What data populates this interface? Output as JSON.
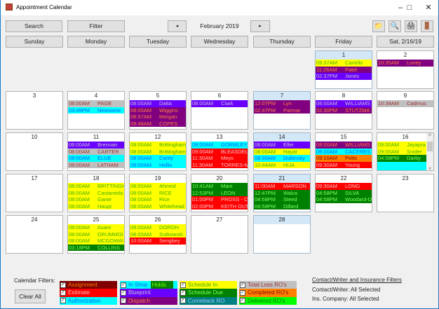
{
  "window": {
    "title": "Appointment Calendar",
    "minimize": "–",
    "maximize": "□",
    "close": "✕"
  },
  "toolbar": {
    "search": "Search",
    "filter": "Filter",
    "prev": "◂",
    "month": "February 2019",
    "next": "▸",
    "icons": [
      {
        "name": "folder-icon",
        "glyph": "📁"
      },
      {
        "name": "magnifier-icon",
        "glyph": "🔍"
      },
      {
        "name": "printer-icon",
        "glyph": "🖨"
      },
      {
        "name": "exit-door-icon",
        "glyph": "🚪"
      }
    ]
  },
  "days": [
    "Sunday",
    "Monday",
    "Tuesday",
    "Wednesday",
    "Thursday",
    "Friday",
    "Sat, 2/16/19"
  ],
  "styles": {
    "assignment": {
      "bg": "#800000",
      "fg": "#ff8000"
    },
    "estimate": {
      "bg": "#ff0000",
      "fg": "#ffc0c0"
    },
    "authorization": {
      "bg": "#00ffff",
      "fg": "#0060ff"
    },
    "in_shop": {
      "bg": "#00ffff",
      "fg": "#0060ff"
    },
    "holds": {
      "bg": "#008000",
      "fg": "#80ff00"
    },
    "blueprint": {
      "bg": "#6a00ff",
      "fg": "#c8c8c8"
    },
    "dispatch": {
      "bg": "#800080",
      "fg": "#ff8040"
    },
    "schedule_in": {
      "bg": "#ffff00",
      "fg": "#40b000"
    },
    "schedule_due": {
      "bg": "#008000",
      "fg": "#80ff60"
    },
    "comeback": {
      "bg": "#008080",
      "fg": "#a0c8ff"
    },
    "total_loss": {
      "bg": "#c0c0c0",
      "fg": "#a03030"
    },
    "completed": {
      "bg": "#ff8000",
      "fg": "#800000"
    },
    "delivered": {
      "bg": "#00ff00",
      "fg": "#007000"
    }
  },
  "weeks": [
    [
      null,
      null,
      null,
      null,
      null,
      {
        "day": "1",
        "highlight": true,
        "appts": [
          {
            "time": "09:37AM",
            "name": "Cariello",
            "type": "schedule_in"
          },
          {
            "time": "11:26AM",
            "name": "Patel",
            "type": "dispatch"
          },
          {
            "time": "02:37PM",
            "name": "Jones",
            "type": "blueprint"
          }
        ]
      },
      {
        "day": "2",
        "appts": [
          {
            "time": "10:35AM",
            "name": "Loney",
            "type": "dispatch"
          }
        ]
      }
    ],
    [
      {
        "day": "3",
        "appts": []
      },
      {
        "day": "4",
        "appts": [
          {
            "time": "08:00AM",
            "name": "PAGE",
            "type": "total_loss"
          },
          {
            "time": "03:49PM",
            "name": "Newsome",
            "type": "authorization"
          }
        ]
      },
      {
        "day": "5",
        "appts": [
          {
            "time": "08:00AM",
            "name": "Datta",
            "type": "blueprint"
          },
          {
            "time": "08:00AM",
            "name": "Wiggins",
            "type": "dispatch"
          },
          {
            "time": "08:37AM",
            "name": "Morgan",
            "type": "dispatch"
          },
          {
            "time": "09:48AM",
            "name": "COPES",
            "type": "dispatch"
          }
        ]
      },
      {
        "day": "6",
        "appts": [
          {
            "time": "08:00AM",
            "name": "Clark",
            "type": "blueprint"
          }
        ]
      },
      {
        "day": "7",
        "highlight": true,
        "appts": [
          {
            "time": "12:07PM",
            "name": "Lyn",
            "type": "dispatch"
          },
          {
            "time": "02:47PM",
            "name": "Parmar",
            "type": "dispatch"
          }
        ]
      },
      {
        "day": "8",
        "appts": [
          {
            "time": "08:00AM",
            "name": "WILLIAMS",
            "type": "blueprint"
          },
          {
            "time": "02:30PM",
            "name": "STUTZMA",
            "type": "dispatch"
          }
        ]
      },
      {
        "day": "9",
        "appts": [
          {
            "time": "10:38AM",
            "name": "Cadmus",
            "type": "total_loss"
          }
        ]
      }
    ],
    [
      {
        "day": "10",
        "appts": []
      },
      {
        "day": "11",
        "appts": [
          {
            "time": "08:00AM",
            "name": "Brennan",
            "type": "blueprint"
          },
          {
            "time": "08:00AM",
            "name": "CARTER",
            "type": "total_loss"
          },
          {
            "time": "08:00AM",
            "name": "ELUE",
            "type": "authorization"
          },
          {
            "time": "08:00AM",
            "name": "LATHAM",
            "type": "total_loss"
          }
        ]
      },
      {
        "day": "12",
        "appts": [
          {
            "time": "08:00AM",
            "name": "Brittingham",
            "type": "schedule_in"
          },
          {
            "time": "08:00AM",
            "name": "Brittingham",
            "type": "schedule_in"
          },
          {
            "time": "08:00AM",
            "name": "Carey",
            "type": "authorization"
          },
          {
            "time": "08:00AM",
            "name": "Hollis",
            "type": "authorization"
          }
        ]
      },
      {
        "day": "13",
        "appts": [
          {
            "time": "08:00AM",
            "name": "GORMLEY",
            "type": "authorization"
          },
          {
            "time": "09:00AM",
            "name": "BLEASDEL",
            "type": "estimate"
          },
          {
            "time": "11:30AM",
            "name": "Meys",
            "type": "estimate"
          },
          {
            "time": "11:30AM",
            "name": "TORRES-M",
            "type": "estimate"
          }
        ]
      },
      {
        "day": "14",
        "highlight": true,
        "appts": [
          {
            "time": "08:00AM",
            "name": "Eller",
            "type": "blueprint"
          },
          {
            "time": "08:00AM",
            "name": "Hayat",
            "type": "schedule_in"
          },
          {
            "time": "08:39AM",
            "name": "Dubinsky",
            "type": "authorization"
          },
          {
            "time": "10:44AM",
            "name": "HIJA",
            "type": "schedule_in"
          }
        ]
      },
      {
        "day": "15",
        "appts": [
          {
            "time": "08:00AM",
            "name": "WILLIAMS",
            "type": "dispatch"
          },
          {
            "time": "09:00AM",
            "name": "CACERES",
            "type": "authorization"
          },
          {
            "time": "09:10AM",
            "name": "Potts",
            "type": "completed"
          },
          {
            "time": "09:30AM",
            "name": "Young",
            "type": "estimate"
          }
        ]
      },
      {
        "day": "16",
        "scroll": true,
        "appts": [
          {
            "time": "09:00AM",
            "name": "Jayapra",
            "type": "schedule_in"
          },
          {
            "time": "09:00AM",
            "name": "Snider",
            "type": "schedule_in"
          },
          {
            "time": "04:58PM",
            "name": "Darby",
            "type": "schedule_due"
          },
          {
            "time": "",
            "name": "",
            "type": "authorization"
          }
        ]
      }
    ],
    [
      {
        "day": "17",
        "appts": []
      },
      {
        "day": "18",
        "appts": [
          {
            "time": "08:00AM",
            "name": "BRITTINGH",
            "type": "schedule_in"
          },
          {
            "time": "08:00AM",
            "name": "Castaneda",
            "type": "schedule_in"
          },
          {
            "time": "08:00AM",
            "name": "Ganie",
            "type": "schedule_in"
          },
          {
            "time": "08:00AM",
            "name": "Haupt",
            "type": "schedule_in"
          }
        ]
      },
      {
        "day": "19",
        "appts": [
          {
            "time": "08:00AM",
            "name": "Ahmed",
            "type": "schedule_in"
          },
          {
            "time": "08:00AM",
            "name": "RICE",
            "type": "schedule_in"
          },
          {
            "time": "08:00AM",
            "name": "Rice",
            "type": "schedule_in"
          },
          {
            "time": "08:00AM",
            "name": "Whitehead",
            "type": "schedule_in"
          }
        ]
      },
      {
        "day": "20",
        "appts": [
          {
            "time": "10:41AM",
            "name": "Mani",
            "type": "schedule_due"
          },
          {
            "time": "12:53PM",
            "name": "LEON",
            "type": "schedule_due"
          },
          {
            "time": "01:00PM",
            "name": "PROSS - C",
            "type": "estimate"
          },
          {
            "time": "02:00PM",
            "name": "KEITH OUT",
            "type": "estimate"
          }
        ]
      },
      {
        "day": "21",
        "highlight": true,
        "appts": [
          {
            "time": "11:00AM",
            "name": "MARSON",
            "type": "estimate"
          },
          {
            "time": "12:47PM",
            "name": "Walus",
            "type": "schedule_due"
          },
          {
            "time": "04:58PM",
            "name": "Steed",
            "type": "schedule_due"
          },
          {
            "time": "04:58PM",
            "name": "Dillard",
            "type": "schedule_due"
          }
        ]
      },
      {
        "day": "22",
        "appts": [
          {
            "time": "09:30AM",
            "name": "LONG",
            "type": "estimate"
          },
          {
            "time": "04:58PM",
            "name": "SILVA",
            "type": "schedule_due"
          },
          {
            "time": "04:58PM",
            "name": "Woodard-D",
            "type": "schedule_due"
          }
        ]
      },
      {
        "day": "23",
        "appts": []
      }
    ],
    [
      {
        "day": "24",
        "appts": []
      },
      {
        "day": "25",
        "appts": [
          {
            "time": "08:00AM",
            "name": "Asare",
            "type": "schedule_in"
          },
          {
            "time": "08:00AM",
            "name": "DRUMMOI",
            "type": "schedule_in"
          },
          {
            "time": "08:00AM",
            "name": "MCGOWAI",
            "type": "schedule_in"
          },
          {
            "time": "03:18PM",
            "name": "COLLINS",
            "type": "schedule_due"
          }
        ]
      },
      {
        "day": "26",
        "appts": [
          {
            "time": "08:00AM",
            "name": "DOROH",
            "type": "schedule_in"
          },
          {
            "time": "08:00AM",
            "name": "Sutkowski",
            "type": "schedule_in"
          },
          {
            "time": "10:00AM",
            "name": "Sengbey",
            "type": "estimate"
          }
        ]
      },
      {
        "day": "27",
        "appts": []
      },
      {
        "day": "28",
        "highlight": true,
        "appts": []
      },
      null,
      null
    ]
  ],
  "filters": {
    "label": "Calendar Filters:",
    "clear_all": "Clear All",
    "groups": [
      [
        {
          "label": "Assignment",
          "type": "assignment",
          "checked": true
        },
        {
          "label": "Estimate",
          "type": "estimate",
          "checked": true
        },
        {
          "label": "Authorization",
          "type": "authorization",
          "checked": true
        }
      ],
      [
        {
          "label": "In Shop",
          "type": "in_shop",
          "checked": true,
          "extra": {
            "label": "Holds",
            "type": "holds"
          }
        },
        {
          "label": "Blueprint",
          "type": "blueprint",
          "checked": true
        },
        {
          "label": "Dispatch",
          "type": "dispatch",
          "checked": true
        }
      ],
      [
        {
          "label": "Schedule In",
          "type": "schedule_in",
          "checked": true
        },
        {
          "label": "Schedule Due",
          "type": "schedule_due",
          "checked": true
        },
        {
          "label": "Comeback RO",
          "type": "comeback",
          "checked": true
        }
      ],
      [
        {
          "label": "Total Loss RO's",
          "type": "total_loss",
          "checked": true
        },
        {
          "label": "Completed RO's",
          "type": "completed",
          "checked": true
        },
        {
          "label": "Delivered RO's",
          "type": "delivered",
          "checked": true
        }
      ]
    ]
  },
  "contact_filters": {
    "title": "Contact/Writer and Insurance Filters",
    "contact_writer": "Contact/Writer: All Selected",
    "ins_company": "Ins. Company:  All Selected"
  }
}
